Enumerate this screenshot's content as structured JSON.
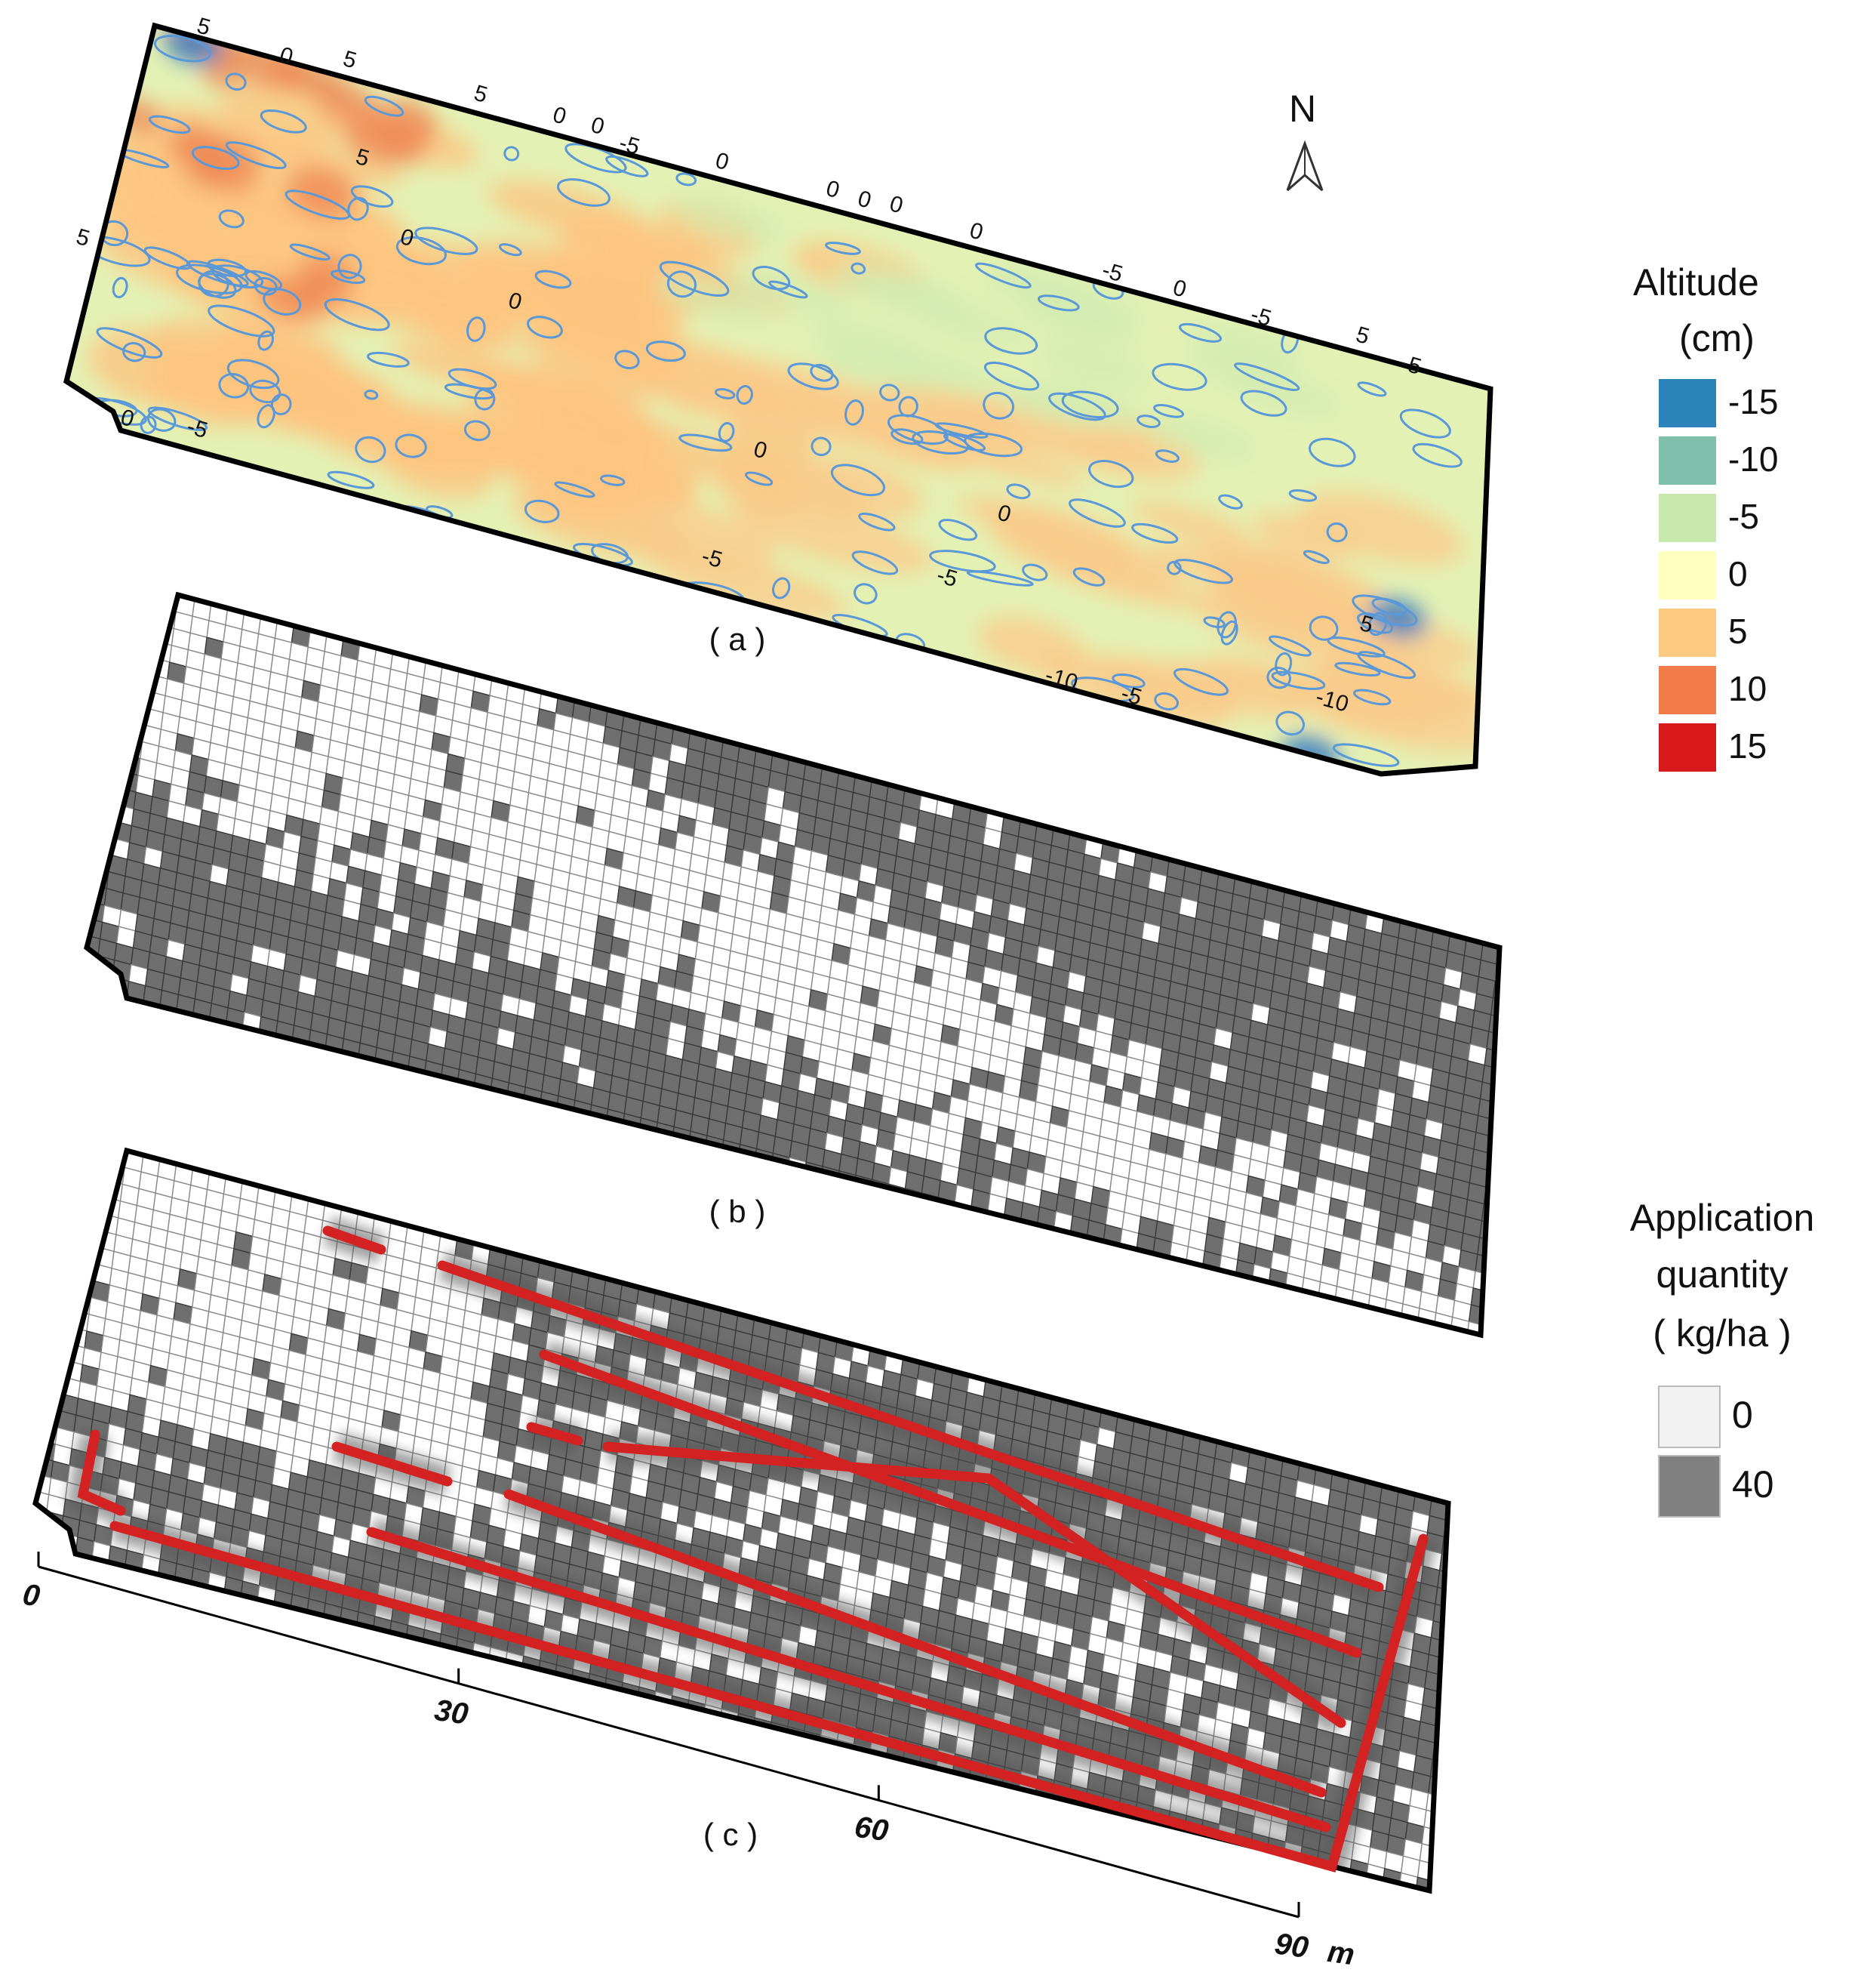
{
  "north": "N",
  "panels": [
    {
      "label": "( a )"
    },
    {
      "label": "( b )"
    },
    {
      "label": "( c )"
    }
  ],
  "contour_labels": [
    "5",
    "0",
    "5",
    "5",
    "0",
    "0",
    "-5",
    "0",
    "0",
    "0",
    "0",
    "0",
    "-5",
    "0",
    "-5",
    "5",
    "-5",
    "5",
    "-10",
    "-10",
    "-5",
    "-5",
    "0",
    "5",
    "0",
    "-5",
    "5",
    "0",
    "0",
    "-5",
    "0"
  ],
  "altitude_legend": {
    "title": "Altitude",
    "unit": "(cm)",
    "items": [
      {
        "value": -15,
        "color": "#2b83ba"
      },
      {
        "value": -10,
        "color": "#80bfac"
      },
      {
        "value": -5,
        "color": "#c7e9ad"
      },
      {
        "value": 0,
        "color": "#ffffbf"
      },
      {
        "value": 5,
        "color": "#fec980"
      },
      {
        "value": 10,
        "color": "#f17c4a"
      },
      {
        "value": 15,
        "color": "#d7191c"
      }
    ]
  },
  "application_legend": {
    "title_lines": [
      "Application",
      "quantity",
      "( kg/ha )"
    ],
    "items": [
      {
        "value": 0,
        "color": "#f2f2f2"
      },
      {
        "value": 40,
        "color": "#808080"
      }
    ]
  },
  "scale_bar": {
    "xlim": [
      0,
      90
    ],
    "xticks": [
      0,
      30,
      60,
      90
    ],
    "unit": "m"
  }
}
